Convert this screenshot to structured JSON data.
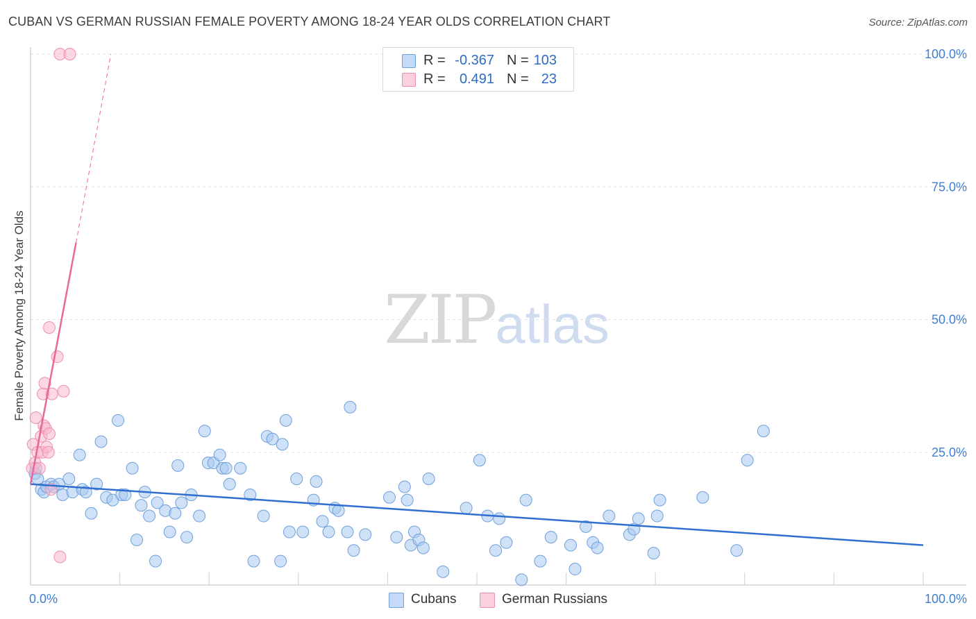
{
  "title": "CUBAN VS GERMAN RUSSIAN FEMALE POVERTY AMONG 18-24 YEAR OLDS CORRELATION CHART",
  "source": "Source: ZipAtlas.com",
  "watermark": {
    "zip": "ZIP",
    "atlas": "atlas"
  },
  "legend": {
    "rows": [
      {
        "r_label": "R =",
        "r_value": "-0.367",
        "n_label": "N =",
        "n_value": "103",
        "color": "#a8c8f0"
      },
      {
        "r_label": "R =",
        "r_value": "0.491",
        "n_label": "N =",
        "n_value": "23",
        "color": "#f7b8cc"
      }
    ]
  },
  "bottom_legend": [
    {
      "label": "Cubans",
      "color": "#a8c8f0"
    },
    {
      "label": "German Russians",
      "color": "#f7b8cc"
    }
  ],
  "chart_data": {
    "type": "scatter",
    "title": "CUBAN VS GERMAN RUSSIAN FEMALE POVERTY AMONG 18-24 YEAR OLDS CORRELATION CHART",
    "xlabel": "",
    "ylabel": "Female Poverty Among 18-24 Year Olds",
    "xlim": [
      0,
      100
    ],
    "ylim": [
      0,
      100
    ],
    "x_tick_labels": [
      {
        "value": 0,
        "label": "0.0%"
      },
      {
        "value": 100,
        "label": "100.0%"
      }
    ],
    "y_tick_labels": [
      {
        "value": 25,
        "label": "25.0%"
      },
      {
        "value": 50,
        "label": "50.0%"
      },
      {
        "value": 75,
        "label": "75.0%"
      },
      {
        "value": 100,
        "label": "100.0%"
      }
    ],
    "grid": true,
    "legend_position": "top-center",
    "series": [
      {
        "name": "Cubans",
        "color": "#a8c8f0",
        "stroke": "#6f9fdc",
        "line_color": "#2f6fcf",
        "trend": {
          "x0": 0,
          "y0": 19,
          "x1": 100,
          "y1": 7.5
        },
        "points": [
          [
            0.5,
            21
          ],
          [
            0.6,
            22
          ],
          [
            0.8,
            20
          ],
          [
            1.2,
            18
          ],
          [
            1.5,
            17.5
          ],
          [
            1.8,
            18.5
          ],
          [
            2.3,
            19
          ],
          [
            2.6,
            18.5
          ],
          [
            3.2,
            19
          ],
          [
            3.6,
            17
          ],
          [
            4.3,
            20
          ],
          [
            4.7,
            17.5
          ],
          [
            5.5,
            24.5
          ],
          [
            5.8,
            18
          ],
          [
            6.2,
            17.5
          ],
          [
            6.8,
            13.5
          ],
          [
            7.4,
            19
          ],
          [
            7.9,
            27
          ],
          [
            8.5,
            16.5
          ],
          [
            9.2,
            16
          ],
          [
            9.8,
            31
          ],
          [
            10.2,
            17
          ],
          [
            10.6,
            17
          ],
          [
            11.4,
            22
          ],
          [
            11.9,
            8.5
          ],
          [
            12.4,
            15
          ],
          [
            12.8,
            17.5
          ],
          [
            13.3,
            13
          ],
          [
            14.0,
            4.5
          ],
          [
            14.2,
            15.5
          ],
          [
            15.1,
            14
          ],
          [
            15.6,
            10
          ],
          [
            16.2,
            13.5
          ],
          [
            16.5,
            22.5
          ],
          [
            16.9,
            15.5
          ],
          [
            17.5,
            9
          ],
          [
            18.0,
            17
          ],
          [
            18.9,
            13
          ],
          [
            19.5,
            29
          ],
          [
            19.9,
            23
          ],
          [
            20.5,
            23
          ],
          [
            21.2,
            24.5
          ],
          [
            21.5,
            22
          ],
          [
            21.9,
            22
          ],
          [
            22.3,
            19
          ],
          [
            23.5,
            22
          ],
          [
            24.6,
            17
          ],
          [
            25.0,
            4.5
          ],
          [
            26.1,
            13
          ],
          [
            26.5,
            28
          ],
          [
            27.1,
            27.5
          ],
          [
            28.0,
            4.5
          ],
          [
            28.2,
            26.5
          ],
          [
            28.6,
            31
          ],
          [
            29.0,
            10
          ],
          [
            29.8,
            20
          ],
          [
            30.5,
            10
          ],
          [
            31.7,
            16
          ],
          [
            32.0,
            19.5
          ],
          [
            32.7,
            12
          ],
          [
            33.4,
            10
          ],
          [
            34.1,
            14.5
          ],
          [
            34.5,
            14
          ],
          [
            35.5,
            10
          ],
          [
            35.8,
            33.5
          ],
          [
            36.2,
            6.5
          ],
          [
            37.5,
            9.5
          ],
          [
            40.2,
            16.5
          ],
          [
            41.0,
            9
          ],
          [
            41.9,
            18.5
          ],
          [
            42.2,
            16
          ],
          [
            42.6,
            7.5
          ],
          [
            43.0,
            10
          ],
          [
            43.5,
            8.5
          ],
          [
            44.0,
            7
          ],
          [
            44.6,
            20
          ],
          [
            46.2,
            2.5
          ],
          [
            48.8,
            14.5
          ],
          [
            50.3,
            23.5
          ],
          [
            51.2,
            13
          ],
          [
            52.1,
            6.5
          ],
          [
            52.5,
            12.5
          ],
          [
            53.3,
            8
          ],
          [
            55.5,
            16
          ],
          [
            57.1,
            4.5
          ],
          [
            58.3,
            9
          ],
          [
            60.5,
            7.5
          ],
          [
            61.0,
            3
          ],
          [
            62.2,
            11
          ],
          [
            63.0,
            8
          ],
          [
            63.5,
            7
          ],
          [
            64.8,
            13
          ],
          [
            67.1,
            9.5
          ],
          [
            67.6,
            10.5
          ],
          [
            68.1,
            12.5
          ],
          [
            69.8,
            6
          ],
          [
            70.2,
            13
          ],
          [
            70.5,
            16
          ],
          [
            75.3,
            16.5
          ],
          [
            79.1,
            6.5
          ],
          [
            80.3,
            23.5
          ],
          [
            82.1,
            29
          ],
          [
            55.0,
            1
          ]
        ]
      },
      {
        "name": "German Russians",
        "color": "#f7b8cc",
        "stroke": "#ec8fae",
        "line_color": "#e8689a",
        "trend": {
          "x0": 0,
          "y0": 19,
          "x1": 5.1,
          "y1": 64.5,
          "extend_x1": 9.0,
          "extend_y1": 100
        },
        "points": [
          [
            0.2,
            22
          ],
          [
            0.3,
            26.5
          ],
          [
            0.5,
            23
          ],
          [
            0.6,
            31.5
          ],
          [
            0.8,
            25
          ],
          [
            1.0,
            22
          ],
          [
            1.2,
            28
          ],
          [
            1.3,
            25
          ],
          [
            1.4,
            36
          ],
          [
            1.5,
            30
          ],
          [
            1.6,
            38
          ],
          [
            1.7,
            29.5
          ],
          [
            1.8,
            26
          ],
          [
            2.0,
            25
          ],
          [
            2.1,
            28.5
          ],
          [
            2.1,
            48.5
          ],
          [
            2.3,
            18
          ],
          [
            2.4,
            36
          ],
          [
            3.0,
            43
          ],
          [
            3.3,
            5.3
          ],
          [
            3.7,
            36.5
          ],
          [
            3.3,
            100
          ],
          [
            4.4,
            100
          ]
        ]
      }
    ]
  }
}
